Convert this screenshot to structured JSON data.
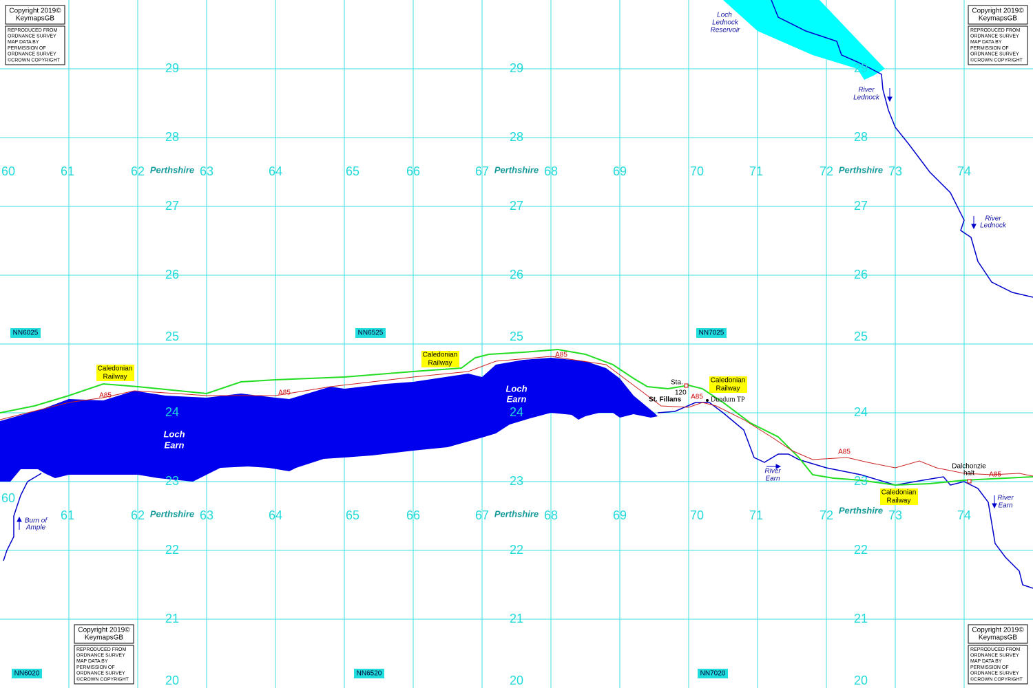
{
  "grid": {
    "eastings": [
      60,
      61,
      62,
      63,
      64,
      65,
      66,
      67,
      68,
      69,
      70,
      71,
      72,
      73,
      74
    ],
    "northings": [
      29,
      28,
      27,
      26,
      25,
      24,
      23,
      22,
      21,
      20
    ],
    "county": "Perthshire"
  },
  "squares": [
    "NN6025",
    "NN6525",
    "NN7025",
    "NN6020",
    "NN6520",
    "NN7020"
  ],
  "copyright": {
    "title": "Copyright 2019©",
    "publisher": "KeymapsGB",
    "notice": [
      "REPRODUCED FROM",
      "ORDNANCE SURVEY",
      "MAP DATA BY",
      "PERMISSION OF",
      "ORDNANCE SURVEY",
      "©CROWN COPYRIGHT"
    ]
  },
  "features": {
    "loch_earn": [
      "Loch",
      "Earn"
    ],
    "reservoir": [
      "Loch",
      "Lednock",
      "Reservoir"
    ],
    "river_lednock": [
      "River",
      "Lednock"
    ],
    "river_earn": [
      "River",
      "Earn"
    ],
    "burn_of_ample": [
      "Burn of",
      "Ample"
    ],
    "railway": [
      "Caledonian",
      "Railway"
    ],
    "road": "A85",
    "station": "Sta.",
    "spot_height": "120",
    "village": "St. Fillans",
    "dundurn": "Dundurn TP",
    "dalchonzie": [
      "Dalchonzie",
      "halt"
    ]
  }
}
